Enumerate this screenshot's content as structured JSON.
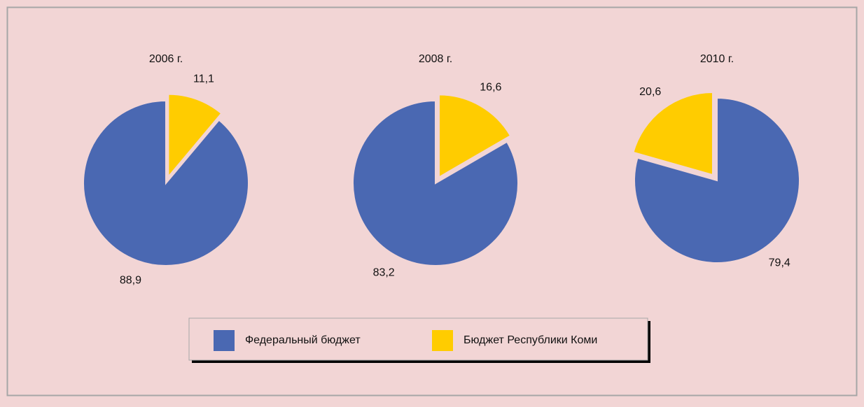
{
  "chart_data": [
    {
      "type": "pie",
      "title": "2006 г.",
      "categories": [
        "Бюджет Республики Коми",
        "Федеральный бюджет"
      ],
      "values": [
        11.1,
        88.9
      ],
      "value_labels": [
        "11,1",
        "88,9"
      ],
      "colors": [
        "#ffcc00",
        "#4a68b2"
      ]
    },
    {
      "type": "pie",
      "title": "2008 г.",
      "categories": [
        "Бюджет Республики Коми",
        "Федеральный бюджет"
      ],
      "values": [
        16.6,
        83.2
      ],
      "value_labels": [
        "16,6",
        "83,2"
      ],
      "colors": [
        "#ffcc00",
        "#4a68b2"
      ]
    },
    {
      "type": "pie",
      "title": "2010 г.",
      "categories": [
        "Федеральный бюджет",
        "Бюджет Республики Коми"
      ],
      "values": [
        79.4,
        20.6
      ],
      "value_labels": [
        "79,4",
        "20,6"
      ],
      "colors": [
        "#4a68b2",
        "#ffcc00"
      ]
    }
  ]
}
